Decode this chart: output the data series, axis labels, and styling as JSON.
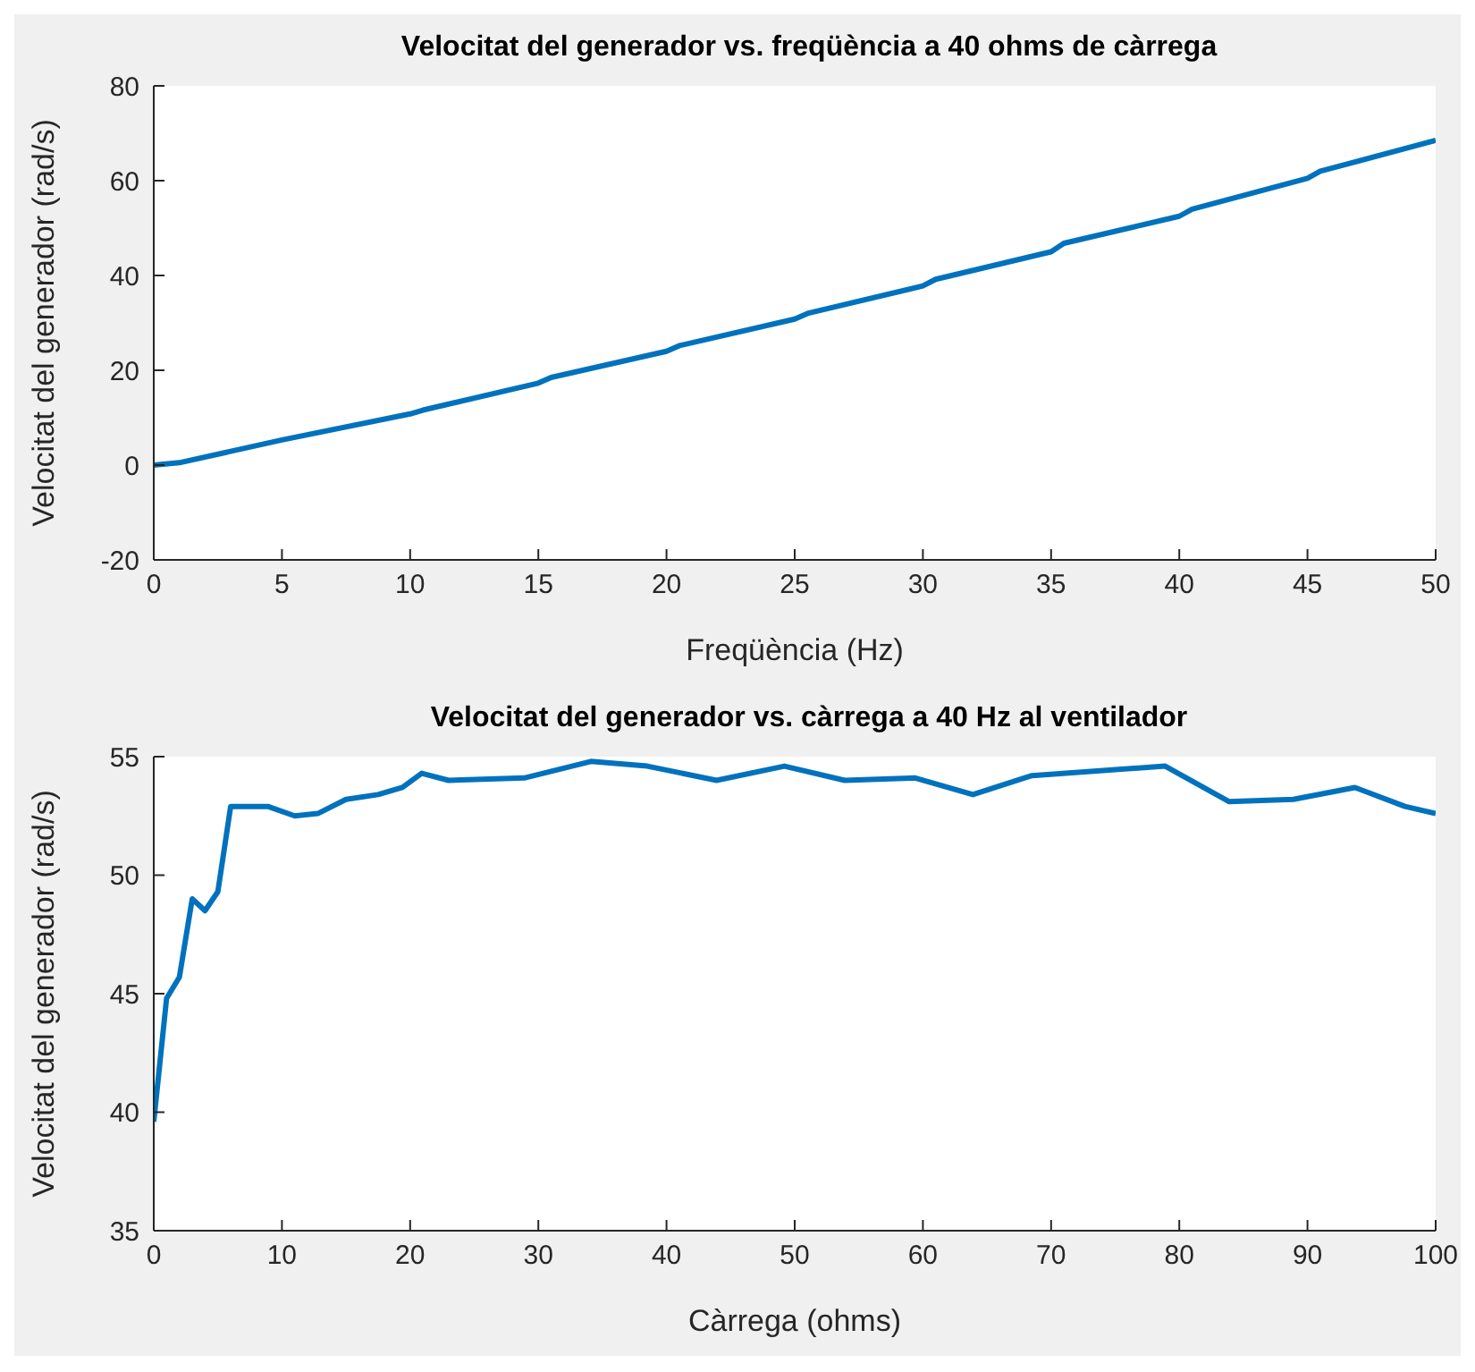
{
  "chart_data": [
    {
      "type": "line",
      "title": "Velocitat del generador vs. freqüència a 40 ohms de càrrega",
      "xlabel": "Freqüència (Hz)",
      "ylabel": "Velocitat del generador (rad/s)",
      "xlim": [
        0,
        50
      ],
      "xticks": [
        0,
        5,
        10,
        15,
        20,
        25,
        30,
        35,
        40,
        45,
        50
      ],
      "ylim": [
        -20,
        80
      ],
      "yticks": [
        -20,
        0,
        20,
        40,
        60,
        80
      ],
      "grid": false,
      "legend": false,
      "series": [
        {
          "color": "#0072bd",
          "x": [
            0,
            1,
            5,
            10,
            10.5,
            15,
            15.5,
            20,
            20.5,
            25,
            25.5,
            30,
            30.5,
            35,
            35.5,
            40,
            40.5,
            45,
            45.5,
            50
          ],
          "values": [
            0,
            0.5,
            5.3,
            10.8,
            11.6,
            17.3,
            18.5,
            24,
            25.2,
            30.8,
            32,
            37.8,
            39.2,
            45,
            46.8,
            52.5,
            54,
            60.5,
            62,
            68.5
          ]
        }
      ]
    },
    {
      "type": "line",
      "title": "Velocitat del generador vs. càrrega a 40 Hz al ventilador",
      "xlabel": "Càrrega (ohms)",
      "ylabel": "Velocitat del generador (rad/s)",
      "xlim": [
        0,
        100
      ],
      "xticks": [
        0,
        10,
        20,
        30,
        40,
        50,
        60,
        70,
        80,
        90,
        100
      ],
      "ylim": [
        35,
        55
      ],
      "yticks": [
        35,
        40,
        45,
        50,
        55
      ],
      "grid": false,
      "legend": false,
      "series": [
        {
          "color": "#0072bd",
          "x": [
            0,
            1,
            2,
            3,
            4,
            5,
            6,
            8.9,
            11,
            12.8,
            15,
            17.5,
            19.4,
            20.9,
            23,
            28.9,
            34.1,
            38.5,
            43.9,
            49.2,
            53.9,
            59.4,
            63.9,
            68.5,
            78.9,
            83.9,
            88.9,
            93.7,
            97.6,
            100
          ],
          "values": [
            39.6,
            44.8,
            45.7,
            49,
            48.5,
            49.3,
            52.9,
            52.9,
            52.5,
            52.6,
            53.2,
            53.4,
            53.7,
            54.3,
            54,
            54.1,
            54.8,
            54.6,
            54,
            54.6,
            54,
            54.1,
            53.4,
            54.2,
            54.6,
            53.1,
            53.2,
            53.7,
            52.9,
            52.6
          ]
        }
      ]
    }
  ]
}
